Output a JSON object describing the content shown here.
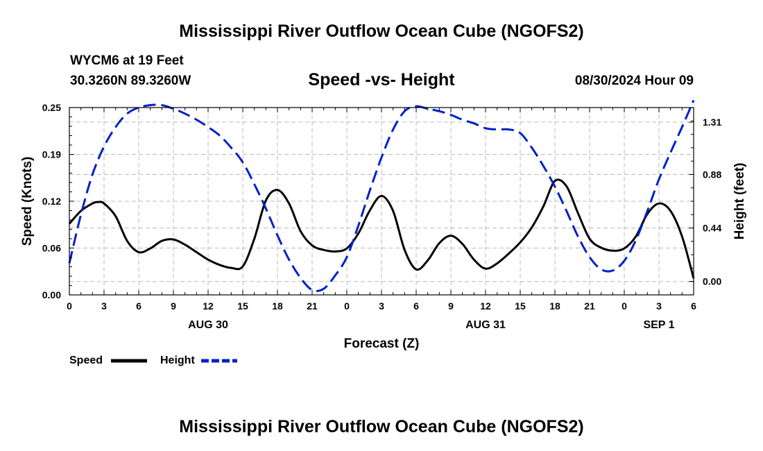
{
  "header": {
    "title": "Mississippi River Outflow Ocean Cube (NGOFS2)",
    "station": "WYCM6 at 19 Feet",
    "coords": "30.3260N  89.3260W",
    "subtitle": "Speed -vs- Height",
    "datetime": "08/30/2024 Hour 09"
  },
  "footer": {
    "title": "Mississippi River Outflow Ocean Cube (NGOFS2)"
  },
  "chart_data": {
    "type": "line",
    "title": "Speed -vs- Height",
    "xlabel": "Forecast (Z)",
    "ylabel": "Speed (Knots)",
    "y2label": "Height (feet)",
    "xlim": [
      0,
      54
    ],
    "ylim": [
      0,
      0.25
    ],
    "y2lim": [
      -0.11,
      1.43
    ],
    "x_ticks": [
      {
        "x": 0,
        "label": "0"
      },
      {
        "x": 3,
        "label": "3"
      },
      {
        "x": 6,
        "label": "6"
      },
      {
        "x": 9,
        "label": "9"
      },
      {
        "x": 12,
        "label": "12"
      },
      {
        "x": 15,
        "label": "15"
      },
      {
        "x": 18,
        "label": "18"
      },
      {
        "x": 21,
        "label": "21"
      },
      {
        "x": 24,
        "label": "0"
      },
      {
        "x": 27,
        "label": "3"
      },
      {
        "x": 30,
        "label": "6"
      },
      {
        "x": 33,
        "label": "9"
      },
      {
        "x": 36,
        "label": "12"
      },
      {
        "x": 39,
        "label": "15"
      },
      {
        "x": 42,
        "label": "18"
      },
      {
        "x": 45,
        "label": "21"
      },
      {
        "x": 48,
        "label": "0"
      },
      {
        "x": 51,
        "label": "3"
      },
      {
        "x": 54,
        "label": "6"
      }
    ],
    "date_labels": [
      {
        "x": 12,
        "label": "AUG 30"
      },
      {
        "x": 36,
        "label": "AUG 31"
      },
      {
        "x": 51,
        "label": "SEP 1"
      }
    ],
    "y_ticks": [
      {
        "v": 0.0,
        "label": "0.00"
      },
      {
        "v": 0.0625,
        "label": "0.06"
      },
      {
        "v": 0.125,
        "label": "0.12"
      },
      {
        "v": 0.1875,
        "label": "0.19"
      },
      {
        "v": 0.25,
        "label": "0.25"
      }
    ],
    "y2_ticks": [
      {
        "v": 0.0,
        "label": "0.00"
      },
      {
        "v": 0.44,
        "label": "0.44"
      },
      {
        "v": 0.88,
        "label": "0.88"
      },
      {
        "v": 1.31,
        "label": "1.31"
      }
    ],
    "legend": {
      "position": "bottom-left",
      "speed_label": "Speed",
      "height_label": "Height"
    },
    "series": [
      {
        "name": "Speed",
        "axis": "left",
        "color": "#000000",
        "dash": "solid",
        "points": [
          [
            0,
            0.095
          ],
          [
            1,
            0.112
          ],
          [
            2,
            0.122
          ],
          [
            2.5,
            0.124
          ],
          [
            3,
            0.122
          ],
          [
            4,
            0.105
          ],
          [
            5,
            0.072
          ],
          [
            6,
            0.057
          ],
          [
            7,
            0.062
          ],
          [
            8,
            0.072
          ],
          [
            9,
            0.074
          ],
          [
            10,
            0.067
          ],
          [
            11,
            0.057
          ],
          [
            12,
            0.047
          ],
          [
            13,
            0.04
          ],
          [
            14,
            0.036
          ],
          [
            15,
            0.038
          ],
          [
            16,
            0.075
          ],
          [
            17,
            0.126
          ],
          [
            18,
            0.14
          ],
          [
            19,
            0.122
          ],
          [
            20,
            0.085
          ],
          [
            21,
            0.066
          ],
          [
            22,
            0.06
          ],
          [
            23,
            0.058
          ],
          [
            24,
            0.062
          ],
          [
            25,
            0.082
          ],
          [
            26,
            0.113
          ],
          [
            27,
            0.132
          ],
          [
            28,
            0.112
          ],
          [
            29,
            0.06
          ],
          [
            30,
            0.034
          ],
          [
            31,
            0.046
          ],
          [
            32,
            0.069
          ],
          [
            33,
            0.079
          ],
          [
            34,
            0.068
          ],
          [
            35,
            0.047
          ],
          [
            36,
            0.035
          ],
          [
            37,
            0.042
          ],
          [
            38,
            0.055
          ],
          [
            39,
            0.07
          ],
          [
            40,
            0.09
          ],
          [
            41,
            0.118
          ],
          [
            42,
            0.152
          ],
          [
            43,
            0.145
          ],
          [
            44,
            0.109
          ],
          [
            45,
            0.075
          ],
          [
            46,
            0.063
          ],
          [
            47,
            0.059
          ],
          [
            48,
            0.062
          ],
          [
            49,
            0.078
          ],
          [
            50,
            0.108
          ],
          [
            51,
            0.122
          ],
          [
            52,
            0.112
          ],
          [
            53,
            0.078
          ],
          [
            54,
            0.022
          ]
        ]
      },
      {
        "name": "Height",
        "axis": "right",
        "color": "#0020c8",
        "dash": "dashed",
        "points": [
          [
            0,
            0.15
          ],
          [
            1,
            0.55
          ],
          [
            2,
            0.88
          ],
          [
            3,
            1.11
          ],
          [
            4,
            1.27
          ],
          [
            5,
            1.38
          ],
          [
            6,
            1.43
          ],
          [
            7,
            1.45
          ],
          [
            8,
            1.45
          ],
          [
            9,
            1.42
          ],
          [
            10,
            1.38
          ],
          [
            11,
            1.33
          ],
          [
            12,
            1.27
          ],
          [
            13,
            1.2
          ],
          [
            14,
            1.1
          ],
          [
            15,
            0.98
          ],
          [
            16,
            0.8
          ],
          [
            17,
            0.6
          ],
          [
            18,
            0.38
          ],
          [
            19,
            0.18
          ],
          [
            20,
            0.03
          ],
          [
            21,
            -0.07
          ],
          [
            22,
            -0.06
          ],
          [
            23,
            0.05
          ],
          [
            24,
            0.2
          ],
          [
            25,
            0.46
          ],
          [
            26,
            0.75
          ],
          [
            27,
            1.02
          ],
          [
            28,
            1.25
          ],
          [
            29,
            1.4
          ],
          [
            30,
            1.44
          ],
          [
            31,
            1.42
          ],
          [
            32,
            1.4
          ],
          [
            33,
            1.37
          ],
          [
            34,
            1.33
          ],
          [
            35,
            1.3
          ],
          [
            36,
            1.26
          ],
          [
            37,
            1.25
          ],
          [
            38,
            1.25
          ],
          [
            39,
            1.22
          ],
          [
            40,
            1.1
          ],
          [
            41,
            0.95
          ],
          [
            42,
            0.78
          ],
          [
            43,
            0.58
          ],
          [
            44,
            0.37
          ],
          [
            45,
            0.2
          ],
          [
            46,
            0.1
          ],
          [
            47,
            0.09
          ],
          [
            48,
            0.17
          ],
          [
            49,
            0.34
          ],
          [
            50,
            0.58
          ],
          [
            51,
            0.84
          ],
          [
            52,
            1.06
          ],
          [
            53,
            1.27
          ],
          [
            54,
            1.49
          ]
        ]
      }
    ]
  }
}
